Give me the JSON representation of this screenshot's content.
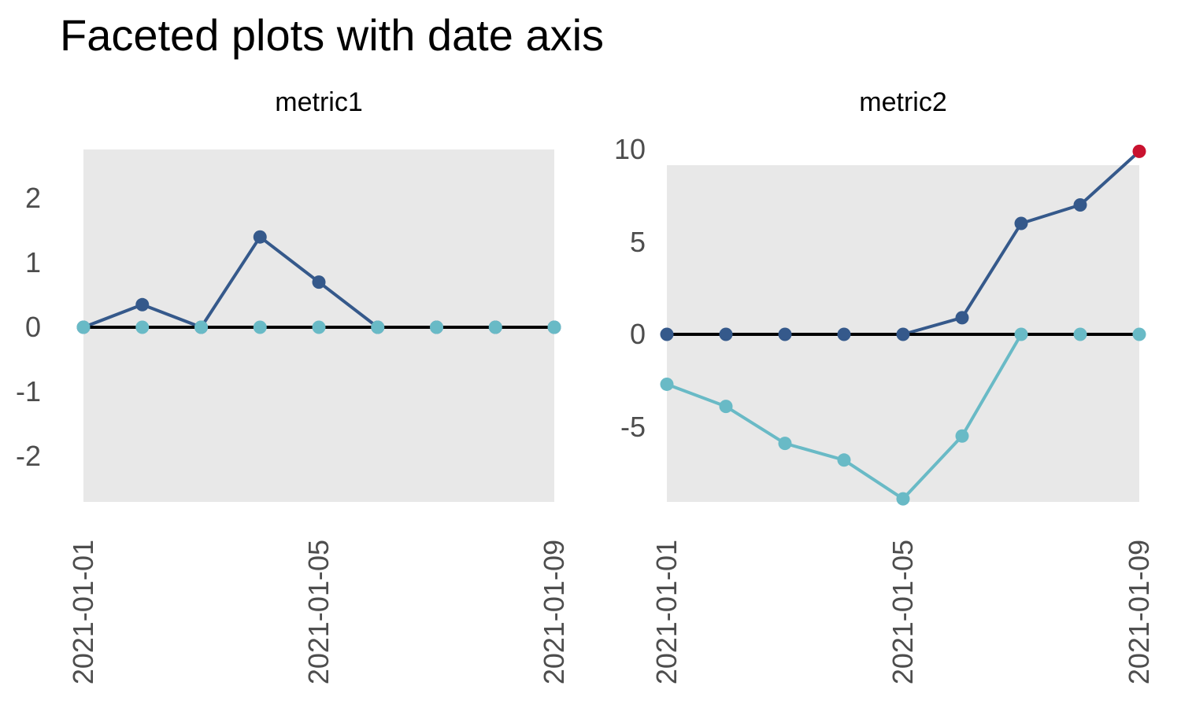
{
  "title": "Faceted plots with date axis",
  "colors": {
    "navy": "#35598B",
    "cyan": "#69BAC6",
    "red": "#C9122F",
    "panel_bg": "#E8E8E8",
    "axis_text": "#4D4D4D",
    "zero_line": "#000000"
  },
  "chart_data": [
    {
      "type": "line",
      "facet": "metric1",
      "x": [
        "2021-01-01",
        "2021-01-02",
        "2021-01-03",
        "2021-01-04",
        "2021-01-05",
        "2021-01-06",
        "2021-01-07",
        "2021-01-08",
        "2021-01-09"
      ],
      "x_tick_labels": [
        "2021-01-01",
        "2021-01-05",
        "2021-01-09"
      ],
      "y_ticks": [
        2,
        1,
        0,
        -1,
        -2
      ],
      "ylim": [
        -2.7,
        2.8
      ],
      "grid": false,
      "legend": "none",
      "zero_line": true,
      "series": [
        {
          "name": "dark-line",
          "color": "#35598B",
          "values": [
            0,
            0.35,
            0,
            1.4,
            0.7,
            0,
            0,
            0,
            0
          ]
        },
        {
          "name": "light-line",
          "color": "#69BAC6",
          "values": [
            0,
            0,
            0,
            0,
            0,
            0,
            0,
            0,
            0
          ]
        }
      ]
    },
    {
      "type": "line",
      "facet": "metric2",
      "x": [
        "2021-01-01",
        "2021-01-02",
        "2021-01-03",
        "2021-01-04",
        "2021-01-05",
        "2021-01-06",
        "2021-01-07",
        "2021-01-08",
        "2021-01-09"
      ],
      "x_tick_labels": [
        "2021-01-01",
        "2021-01-05",
        "2021-01-09"
      ],
      "y_ticks": [
        10,
        5,
        0,
        -5
      ],
      "ylim": [
        -9.1,
        9.1
      ],
      "grid": false,
      "legend": "none",
      "zero_line": true,
      "series": [
        {
          "name": "dark-line",
          "color": "#35598B",
          "values": [
            0,
            0,
            0,
            0,
            0,
            0.9,
            6,
            7,
            9.9
          ],
          "end_point_color": "#C9122F"
        },
        {
          "name": "light-line",
          "color": "#69BAC6",
          "values": [
            -2.7,
            -3.9,
            -5.9,
            -6.8,
            -8.9,
            -5.5,
            0,
            0,
            0
          ]
        }
      ]
    }
  ]
}
